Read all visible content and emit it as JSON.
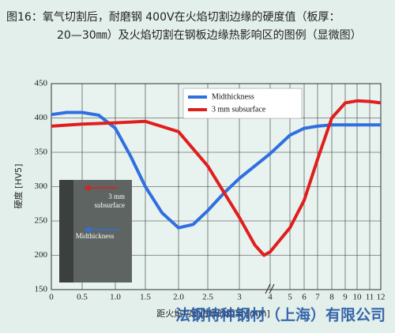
{
  "chart_data": {
    "type": "line",
    "title": [
      "图16：氧气切割后，耐磨钢 400V在火焰切割边缘的硬度值（板厚：",
      "20—30㎜）及火焰切割在钢板边缘热影响区的图例（显微图）"
    ],
    "ylabel": "硬度 [HV5]",
    "xlabel": "距火焰切割边缘的距离 [mm]",
    "watermark": "法钢特种钢材（上海）有限公司",
    "xlim": [
      0,
      12
    ],
    "xticks": [
      0,
      {
        "value": 0.5,
        "label": "0.5"
      },
      {
        "value": 1,
        "label": "1.0"
      },
      1.5,
      {
        "value": 2,
        "label": "2.0"
      },
      2.5,
      3,
      4,
      5,
      6,
      7,
      8,
      9,
      10,
      11,
      12
    ],
    "ylim": [
      150,
      450
    ],
    "yticks": [
      150,
      200,
      250,
      300,
      350,
      400,
      450
    ],
    "grid": true,
    "legend": "upper right",
    "series": [
      {
        "name": "Midthickness",
        "color": "#2f6fe0",
        "x": [
          0,
          0.25,
          0.5,
          0.75,
          1,
          1.25,
          1.5,
          1.75,
          2,
          2.25,
          2.5,
          2.75,
          3,
          4,
          5,
          6,
          7,
          8,
          9,
          10,
          11,
          12
        ],
        "values": [
          405,
          408,
          408,
          404,
          385,
          345,
          300,
          262,
          240,
          245,
          265,
          290,
          312,
          348,
          375,
          385,
          388,
          390,
          390,
          390,
          390,
          390
        ]
      },
      {
        "name": "3 mm subsurface",
        "color": "#e01e1e",
        "x": [
          0,
          0.5,
          1,
          1.5,
          2,
          2.5,
          3,
          3.5,
          3.8,
          4,
          5,
          6,
          7,
          8,
          9,
          10,
          11,
          12
        ],
        "values": [
          388,
          391,
          393,
          395,
          380,
          330,
          255,
          215,
          200,
          205,
          240,
          280,
          340,
          400,
          422,
          425,
          424,
          422
        ]
      }
    ],
    "inset_labels": {
      "subsurface": [
        "3 mm",
        "subsurface"
      ],
      "midthickness": "Midthickness"
    }
  }
}
